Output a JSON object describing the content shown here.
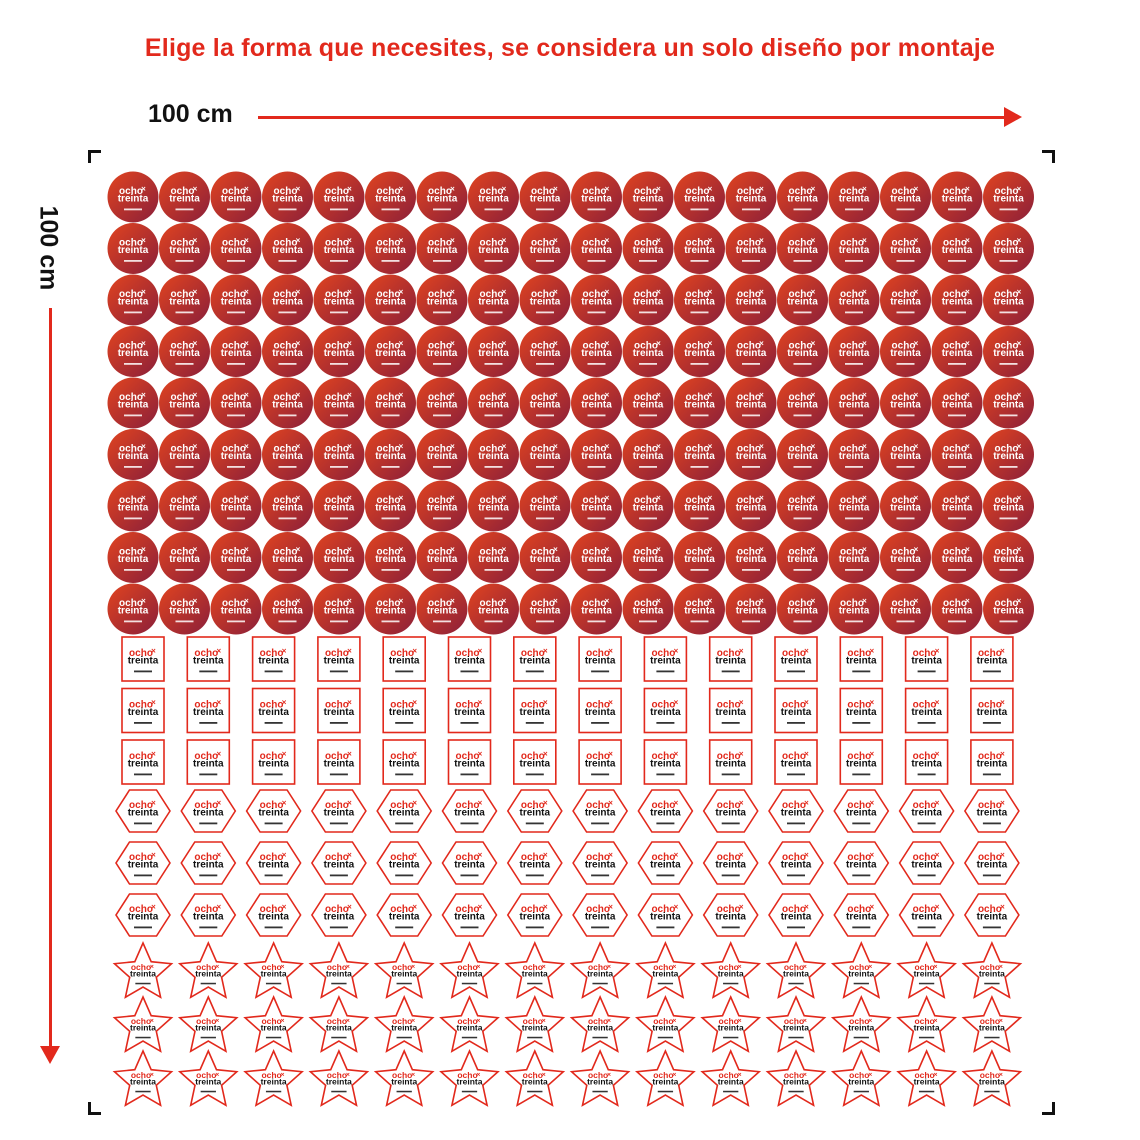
{
  "headline": "Elige la forma que necesites, se considera un solo diseño por montaje",
  "dimensions": {
    "width_label": "100 cm",
    "height_label": "100 cm"
  },
  "sticker": {
    "brand_line1": "ocho",
    "brand_line2": "treinta",
    "mark": "×"
  },
  "colors": {
    "accent": "#e2291c",
    "circle_start": "#e2441f",
    "circle_end": "#8a1f3a",
    "text_dark": "#111111"
  },
  "shape_groups": [
    {
      "shape": "circle",
      "rows": 9,
      "cols": 18
    },
    {
      "shape": "square",
      "rows": 3,
      "cols": 14
    },
    {
      "shape": "hexagon",
      "rows": 3,
      "cols": 14
    },
    {
      "shape": "star",
      "rows": 3,
      "cols": 14
    }
  ]
}
